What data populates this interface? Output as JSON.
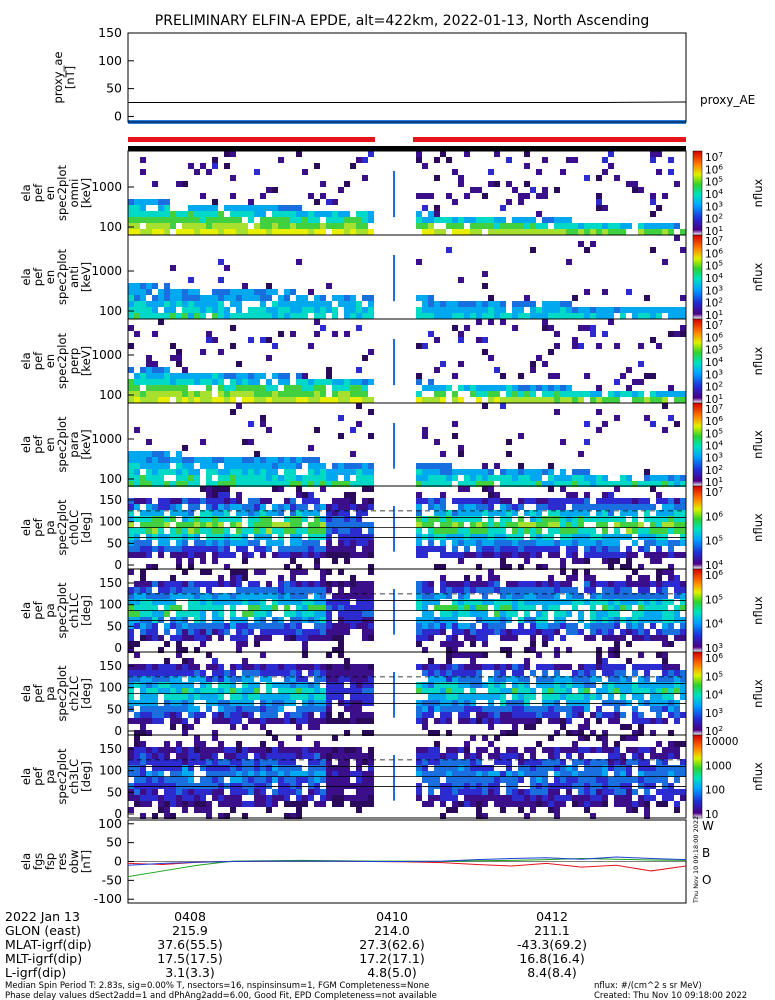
{
  "title": "PRELIMINARY ELFIN-A EPDE, alt=422km, 2022-01-13, North Ascending",
  "colors": {
    "red_bar": "#e8141c",
    "blue_bar": "#1f7fe6",
    "black_bar": "#000000"
  },
  "chart_data": [
    {
      "type": "line",
      "name": "proxy_ae",
      "ylabel": "proxy_ae [nT]",
      "ylim": [
        -10,
        150
      ],
      "yticks": [
        "150",
        "100",
        "50",
        "0"
      ],
      "legend": "proxy_AE",
      "series": [
        {
          "name": "proxy_AE",
          "x": [
            "04:07:25",
            "04:10:35",
            "04:12:35",
            "04:13:30"
          ],
          "values": [
            25,
            25,
            25,
            26
          ]
        }
      ]
    },
    {
      "type": "heatmap",
      "name": "ela_pef_en_spec2plot_omni",
      "ylabel": [
        "ela",
        "pef",
        "en",
        "spec2plot",
        "omni",
        "[keV]"
      ],
      "yticks": [
        "1000",
        "100"
      ],
      "colorbar_ticks": [
        "10^7",
        "10^6",
        "10^5",
        "10^4",
        "10^3",
        "10^2",
        "10^1"
      ],
      "colorbar_label": "nflux"
    },
    {
      "type": "heatmap",
      "name": "ela_pef_en_spec2plot_anti",
      "ylabel": [
        "ela",
        "pef",
        "en",
        "spec2plot",
        "anti",
        "[keV]"
      ],
      "yticks": [
        "1000",
        "100"
      ],
      "colorbar_ticks": [
        "10^7",
        "10^6",
        "10^5",
        "10^4",
        "10^3",
        "10^2",
        "10^1"
      ],
      "colorbar_label": "nflux"
    },
    {
      "type": "heatmap",
      "name": "ela_pef_en_spec2plot_perp",
      "ylabel": [
        "ela",
        "pef",
        "en",
        "spec2plot",
        "perp",
        "[keV]"
      ],
      "yticks": [
        "1000",
        "100"
      ],
      "colorbar_ticks": [
        "10^7",
        "10^6",
        "10^5",
        "10^4",
        "10^3",
        "10^2",
        "10^1"
      ],
      "colorbar_label": "nflux"
    },
    {
      "type": "heatmap",
      "name": "ela_pef_en_spec2plot_para",
      "ylabel": [
        "ela",
        "pef",
        "en",
        "spec2plot",
        "para",
        "[keV]"
      ],
      "yticks": [
        "1000",
        "100"
      ],
      "colorbar_ticks": [
        "10^7",
        "10^6",
        "10^5",
        "10^4",
        "10^3",
        "10^2",
        "10^1"
      ],
      "colorbar_label": "nflux"
    },
    {
      "type": "heatmap",
      "name": "ela_pef_pa_spec2plot_ch0LC",
      "ylabel": [
        "ela",
        "pef",
        "pa",
        "spec2plot",
        "ch0LC",
        "[deg]"
      ],
      "yticks": [
        "150",
        "100",
        "50",
        "0"
      ],
      "colorbar_ticks": [
        "10^7",
        "10^6",
        "10^5",
        "10^4"
      ],
      "colorbar_label": "nflux"
    },
    {
      "type": "heatmap",
      "name": "ela_pef_pa_spec2plot_ch1LC",
      "ylabel": [
        "ela",
        "pef",
        "pa",
        "spec2plot",
        "ch1LC",
        "[deg]"
      ],
      "yticks": [
        "150",
        "100",
        "50",
        "0"
      ],
      "colorbar_ticks": [
        "10^6",
        "10^5",
        "10^4",
        "10^3"
      ],
      "colorbar_label": "nflux"
    },
    {
      "type": "heatmap",
      "name": "ela_pef_pa_spec2plot_ch2LC",
      "ylabel": [
        "ela",
        "pef",
        "pa",
        "spec2plot",
        "ch2LC",
        "[deg]"
      ],
      "yticks": [
        "150",
        "100",
        "50",
        "0"
      ],
      "colorbar_ticks": [
        "10^6",
        "10^5",
        "10^4",
        "10^3",
        "10^2"
      ],
      "colorbar_label": "nflux"
    },
    {
      "type": "heatmap",
      "name": "ela_pef_pa_spec2plot_ch3LC",
      "ylabel": [
        "ela",
        "pef",
        "pa",
        "spec2plot",
        "ch3LC",
        "[deg]"
      ],
      "yticks": [
        "150",
        "100",
        "50",
        "0"
      ],
      "colorbar_ticks": [
        "10000",
        "1000",
        "100",
        "10"
      ],
      "colorbar_label": "nflux"
    },
    {
      "type": "line",
      "name": "ela_fgs_fsp_res_obw",
      "ylabel": [
        "ela",
        "fgs",
        "fsp",
        "res",
        "obw",
        "[nT]"
      ],
      "ylim": [
        -110,
        110
      ],
      "yticks": [
        "100",
        "50",
        "0",
        "-50",
        "-100"
      ],
      "legend": [
        "W",
        "B",
        "O"
      ],
      "series": [
        {
          "name": "W",
          "color": "#e8141c",
          "values": [
            -5,
            -8,
            -2,
            0,
            1,
            2,
            1,
            0,
            -1,
            -3,
            -8,
            -12,
            -5,
            -15,
            -10,
            -25,
            -12
          ]
        },
        {
          "name": "B",
          "color": "#1aa51a",
          "values": [
            -40,
            -25,
            -10,
            1,
            2,
            3,
            2,
            1,
            1,
            0,
            2,
            3,
            5,
            8,
            6,
            4,
            3
          ]
        },
        {
          "name": "O",
          "color": "#1f3fd6",
          "values": [
            -10,
            -5,
            -2,
            0,
            1,
            1,
            1,
            0,
            0,
            1,
            5,
            8,
            10,
            6,
            12,
            8,
            5
          ]
        }
      ]
    }
  ],
  "time_axis": {
    "date": "2022 Jan 13",
    "ticks": [
      "0408",
      "0410",
      "0412"
    ],
    "rows": [
      {
        "label": "GLON (east)",
        "values": [
          "215.9",
          "214.0",
          "211.1"
        ]
      },
      {
        "label": "MLAT-igrf(dip)",
        "values": [
          "37.6(55.5)",
          "27.3(62.6)",
          "-43.3(69.2)"
        ]
      },
      {
        "label": "MLT-igrf(dip)",
        "values": [
          "17.5(17.5)",
          "17.2(17.1)",
          "16.8(16.4)"
        ]
      },
      {
        "label": "L-igrf(dip)",
        "values": [
          "3.1(3.3)",
          "4.8(5.0)",
          "8.4(8.4)"
        ]
      }
    ]
  },
  "footer": {
    "line1_left": "Median Spin Period T: 2.83s, sig=0.00% T, nsectors=16, nspinsinsum=1, FGM Completeness=None",
    "line2_left": "Phase delay values dSect2add=1 and dPhAng2add=6.00, Good Fit, EPD Completeness=not available",
    "line1_right": "nflux: #/(cm^2 s sr MeV)",
    "line2_right": "Created: Thu Nov 10 09:18:00 2022"
  },
  "side_stamp": "Thu Nov 10 09:18:00 2022"
}
